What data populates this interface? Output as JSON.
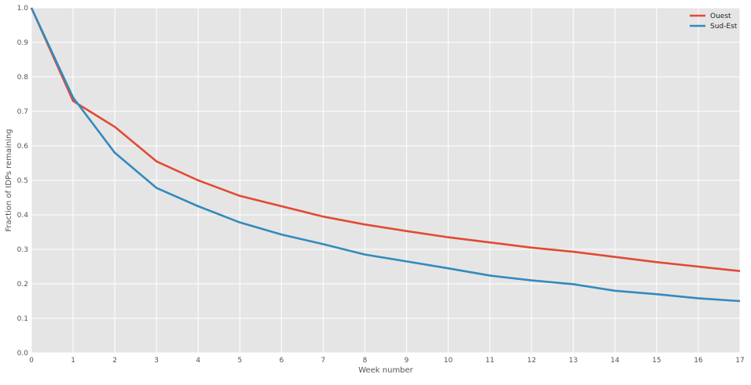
{
  "chart_data": {
    "type": "line",
    "title": "",
    "xlabel": "Week number",
    "ylabel": "Fraction of IDPs remaining",
    "x": [
      0,
      1,
      2,
      3,
      4,
      5,
      6,
      7,
      8,
      9,
      10,
      11,
      12,
      13,
      14,
      15,
      16,
      17
    ],
    "xlim": [
      0,
      17
    ],
    "ylim": [
      0.0,
      1.0
    ],
    "xticks": [
      "0",
      "1",
      "2",
      "3",
      "4",
      "5",
      "6",
      "7",
      "8",
      "9",
      "10",
      "11",
      "12",
      "13",
      "14",
      "15",
      "16",
      "17"
    ],
    "yticks": [
      "0.0",
      "0.1",
      "0.2",
      "0.3",
      "0.4",
      "0.5",
      "0.6",
      "0.7",
      "0.8",
      "0.9",
      "1.0"
    ],
    "grid": true,
    "legend": "top-right",
    "background": "#e5e5e5",
    "series": [
      {
        "name": "Ouest",
        "color": "#e24a33",
        "values": [
          1.0,
          0.73,
          0.655,
          0.555,
          0.5,
          0.455,
          0.425,
          0.395,
          0.372,
          0.353,
          0.335,
          0.32,
          0.305,
          0.293,
          0.278,
          0.263,
          0.25,
          0.237
        ]
      },
      {
        "name": "Sud-Est",
        "color": "#348abd",
        "values": [
          1.0,
          0.74,
          0.58,
          0.478,
          0.425,
          0.378,
          0.343,
          0.315,
          0.285,
          0.265,
          0.245,
          0.224,
          0.21,
          0.199,
          0.18,
          0.17,
          0.158,
          0.15
        ]
      }
    ]
  }
}
